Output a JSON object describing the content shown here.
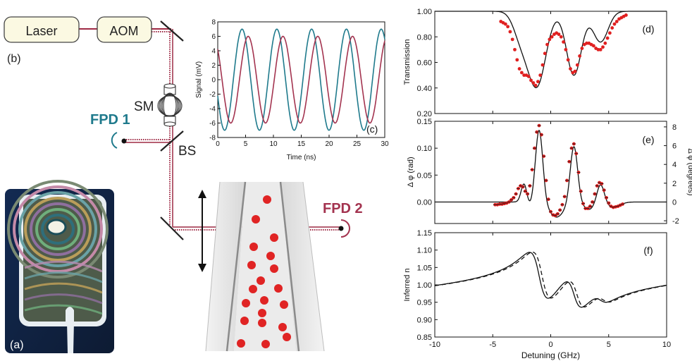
{
  "setup": {
    "laser_label": "Laser",
    "aom_label": "AOM",
    "panel_b_label": "(b)",
    "sm_label": "SM",
    "fpd1_label": "FPD 1",
    "fpd2_label": "FPD 2",
    "bs_label": "BS",
    "panel_a_label": "(a)"
  },
  "colors": {
    "teal": "#1f7a8c",
    "crimson": "#a3334f",
    "red_points": "#e02020",
    "beam": "#9e2a44"
  },
  "chart_data": [
    {
      "id": "c",
      "type": "line",
      "panel_label": "(c)",
      "xlabel": "Time (ns)",
      "ylabel": "Signal (mV)",
      "xlim": [
        0,
        30
      ],
      "ylim": [
        -8,
        8
      ],
      "xticks": [
        0,
        5,
        10,
        15,
        20,
        25,
        30
      ],
      "yticks": [
        -8,
        -6,
        -4,
        -2,
        0,
        2,
        4,
        6,
        8
      ],
      "series": [
        {
          "color": "#1f7a8c",
          "amplitude": 7,
          "period": 6.25,
          "phase_ns": 2.8
        },
        {
          "color": "#a3334f",
          "amplitude": 6,
          "period": 6.25,
          "phase_ns": 3.9
        }
      ]
    },
    {
      "id": "d",
      "type": "line",
      "panel_label": "(d)",
      "ylabel": "Transmission",
      "xlim": [
        -10,
        10
      ],
      "ylim": [
        0.2,
        1.0
      ],
      "yticks": [
        "0.20",
        "0.40",
        "0.60",
        "0.80",
        "1.00"
      ],
      "ytick_values": [
        0.2,
        0.4,
        0.6,
        0.8,
        1.0
      ],
      "theory": {
        "baseline": 1.0,
        "lines": [
          {
            "center": -1.2,
            "width": 1.1,
            "depth": 0.58
          },
          {
            "center": 2.0,
            "width": 0.9,
            "depth": 0.5
          },
          {
            "center": 4.3,
            "width": 0.9,
            "depth": 0.24
          },
          {
            "center": -2.6,
            "width": 0.9,
            "depth": 0.18
          }
        ]
      },
      "data_points": [
        [
          -4.3,
          0.92
        ],
        [
          -4.1,
          0.91
        ],
        [
          -3.9,
          0.9
        ],
        [
          -3.7,
          0.88
        ],
        [
          -3.5,
          0.84
        ],
        [
          -3.3,
          0.78
        ],
        [
          -3.1,
          0.7
        ],
        [
          -2.9,
          0.62
        ],
        [
          -2.7,
          0.55
        ],
        [
          -2.5,
          0.52
        ],
        [
          -2.3,
          0.5
        ],
        [
          -2.1,
          0.5
        ],
        [
          -1.9,
          0.49
        ],
        [
          -1.7,
          0.46
        ],
        [
          -1.5,
          0.44
        ],
        [
          -1.3,
          0.42
        ],
        [
          -1.1,
          0.45
        ],
        [
          -0.9,
          0.5
        ],
        [
          -0.7,
          0.58
        ],
        [
          -0.5,
          0.67
        ],
        [
          -0.3,
          0.74
        ],
        [
          -0.1,
          0.78
        ],
        [
          0.1,
          0.8
        ],
        [
          0.3,
          0.82
        ],
        [
          0.5,
          0.83
        ],
        [
          0.7,
          0.82
        ],
        [
          0.9,
          0.8
        ],
        [
          1.1,
          0.76
        ],
        [
          1.3,
          0.7
        ],
        [
          1.5,
          0.62
        ],
        [
          1.7,
          0.55
        ],
        [
          1.9,
          0.52
        ],
        [
          2.1,
          0.53
        ],
        [
          2.3,
          0.58
        ],
        [
          2.5,
          0.65
        ],
        [
          2.7,
          0.71
        ],
        [
          2.9,
          0.74
        ],
        [
          3.1,
          0.75
        ],
        [
          3.3,
          0.75
        ],
        [
          3.5,
          0.74
        ],
        [
          3.7,
          0.73
        ],
        [
          3.9,
          0.71
        ],
        [
          4.1,
          0.7
        ],
        [
          4.3,
          0.7
        ],
        [
          4.5,
          0.72
        ],
        [
          4.7,
          0.75
        ],
        [
          4.9,
          0.79
        ],
        [
          5.1,
          0.83
        ],
        [
          5.3,
          0.87
        ],
        [
          5.5,
          0.9
        ],
        [
          5.7,
          0.92
        ],
        [
          5.9,
          0.94
        ],
        [
          6.1,
          0.95
        ],
        [
          6.3,
          0.96
        ],
        [
          6.5,
          0.97
        ]
      ],
      "points_color": "#e02020"
    },
    {
      "id": "e",
      "type": "line",
      "panel_label": "(e)",
      "ylabel": "Δ φ (rad)",
      "ylabel_right": "Δ φ (degrees)",
      "xlim": [
        -10,
        10
      ],
      "ylim": [
        -0.04,
        0.15
      ],
      "yticks": [
        "0.00",
        "0.05",
        "0.10",
        "0.15"
      ],
      "ytick_values": [
        0.0,
        0.05,
        0.1,
        0.15
      ],
      "yticks_right": [
        "-2",
        "0",
        "2",
        "4",
        "6",
        "8"
      ],
      "ytick_right_values": [
        -0.0349,
        0.0,
        0.0349,
        0.0698,
        0.1047,
        0.1396
      ],
      "theory": {
        "lines": [
          {
            "center": -1.0,
            "amp": 0.135,
            "width": 0.45
          },
          {
            "center": 2.0,
            "amp": 0.105,
            "width": 0.45
          },
          {
            "center": 4.3,
            "amp": 0.035,
            "width": 0.45
          },
          {
            "center": -2.3,
            "amp": 0.035,
            "width": 0.35
          }
        ],
        "neg": [
          {
            "center": 0.5,
            "amp": -0.028,
            "width": 0.9
          },
          {
            "center": 3.3,
            "amp": -0.014,
            "width": 0.7
          },
          {
            "center": -1.8,
            "amp": -0.008,
            "width": 0.4
          },
          {
            "center": 5.4,
            "amp": -0.01,
            "width": 0.8
          }
        ]
      },
      "data_points": [
        [
          -4.8,
          -0.005
        ],
        [
          -4.6,
          -0.005
        ],
        [
          -4.4,
          -0.004
        ],
        [
          -4.2,
          -0.004
        ],
        [
          -4.0,
          -0.003
        ],
        [
          -3.8,
          -0.002
        ],
        [
          -3.6,
          0.0
        ],
        [
          -3.4,
          0.004
        ],
        [
          -3.2,
          0.008
        ],
        [
          -3.0,
          0.015
        ],
        [
          -2.8,
          0.025
        ],
        [
          -2.6,
          0.03
        ],
        [
          -2.4,
          0.028
        ],
        [
          -2.2,
          0.02
        ],
        [
          -2.0,
          0.015
        ],
        [
          -1.8,
          0.03
        ],
        [
          -1.6,
          0.06
        ],
        [
          -1.4,
          0.1
        ],
        [
          -1.2,
          0.13
        ],
        [
          -1.0,
          0.142
        ],
        [
          -0.8,
          0.125
        ],
        [
          -0.6,
          0.085
        ],
        [
          -0.4,
          0.04
        ],
        [
          -0.2,
          0.005
        ],
        [
          0.0,
          -0.018
        ],
        [
          0.2,
          -0.024
        ],
        [
          0.4,
          -0.025
        ],
        [
          0.6,
          -0.022
        ],
        [
          0.8,
          -0.015
        ],
        [
          1.0,
          -0.005
        ],
        [
          1.2,
          0.01
        ],
        [
          1.4,
          0.04
        ],
        [
          1.6,
          0.075
        ],
        [
          1.8,
          0.1
        ],
        [
          2.0,
          0.108
        ],
        [
          2.2,
          0.09
        ],
        [
          2.4,
          0.055
        ],
        [
          2.6,
          0.02
        ],
        [
          2.8,
          -0.003
        ],
        [
          3.0,
          -0.012
        ],
        [
          3.2,
          -0.012
        ],
        [
          3.4,
          -0.008
        ],
        [
          3.6,
          0.0
        ],
        [
          3.8,
          0.015
        ],
        [
          4.0,
          0.03
        ],
        [
          4.2,
          0.036
        ],
        [
          4.4,
          0.034
        ],
        [
          4.6,
          0.022
        ],
        [
          4.8,
          0.008
        ],
        [
          5.0,
          -0.002
        ],
        [
          5.2,
          -0.008
        ],
        [
          5.4,
          -0.01
        ],
        [
          5.6,
          -0.009
        ],
        [
          5.8,
          -0.008
        ],
        [
          6.0,
          -0.006
        ],
        [
          6.2,
          -0.004
        ]
      ],
      "points_color": "#e02020"
    },
    {
      "id": "f",
      "type": "line",
      "panel_label": "(f)",
      "xlabel": "Detuning (GHz)",
      "ylabel": "Inferred n",
      "xlim": [
        -10,
        10
      ],
      "ylim": [
        0.85,
        1.15
      ],
      "xticks": [
        "-10",
        "-5",
        "0",
        "5",
        "10"
      ],
      "xtick_values": [
        -10,
        -5,
        0,
        5,
        10
      ],
      "yticks": [
        "0.85",
        "0.90",
        "0.95",
        "1.00",
        "1.05",
        "1.10",
        "1.15"
      ],
      "ytick_values": [
        0.85,
        0.9,
        0.95,
        1.0,
        1.05,
        1.1,
        1.15
      ],
      "theory": {
        "base": 1.0,
        "lines": [
          {
            "center": -1.0,
            "amp": 0.1,
            "width": 0.9
          },
          {
            "center": 2.0,
            "amp": 0.065,
            "width": 0.8
          },
          {
            "center": 4.3,
            "amp": 0.02,
            "width": 0.8
          }
        ]
      }
    }
  ]
}
